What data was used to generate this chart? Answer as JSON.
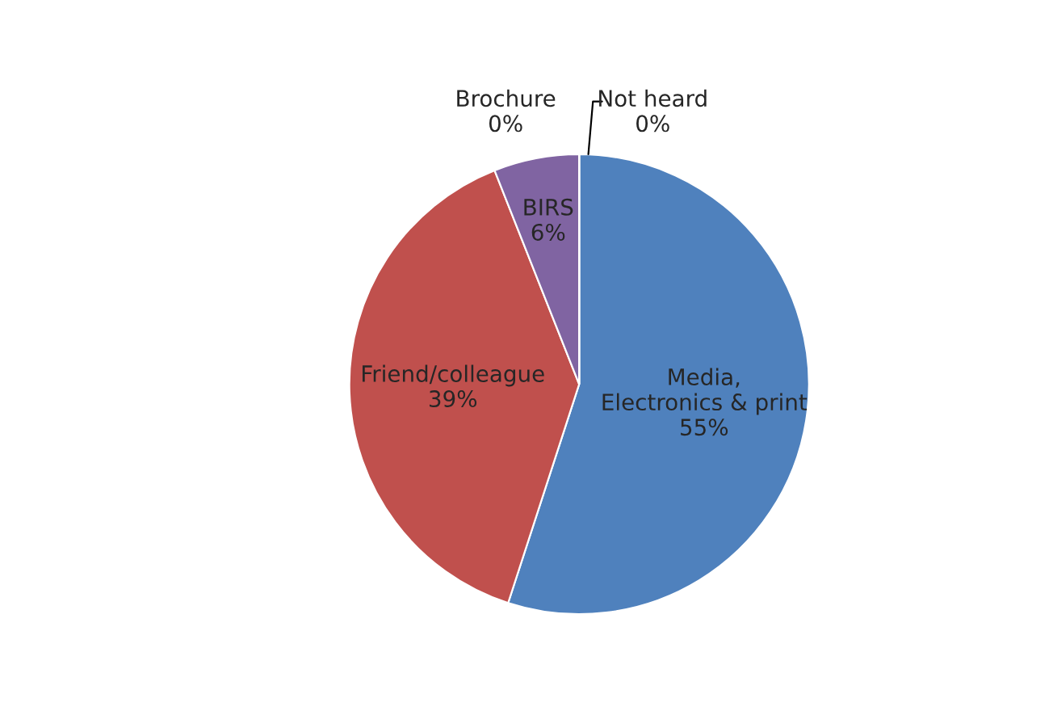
{
  "chart_data": {
    "type": "pie",
    "categories": [
      "Media, Electronics & print",
      "Friend/colleague",
      "BIRS",
      "Brochure",
      "Not heard"
    ],
    "values": [
      55,
      39,
      6,
      0,
      0
    ],
    "colors": [
      "#4f81bd",
      "#c0504d",
      "#8064a2",
      "#9bbb59",
      "#4bacc6"
    ],
    "value_labels": [
      "55%",
      "39%",
      "6%",
      "0%",
      "0%"
    ]
  }
}
